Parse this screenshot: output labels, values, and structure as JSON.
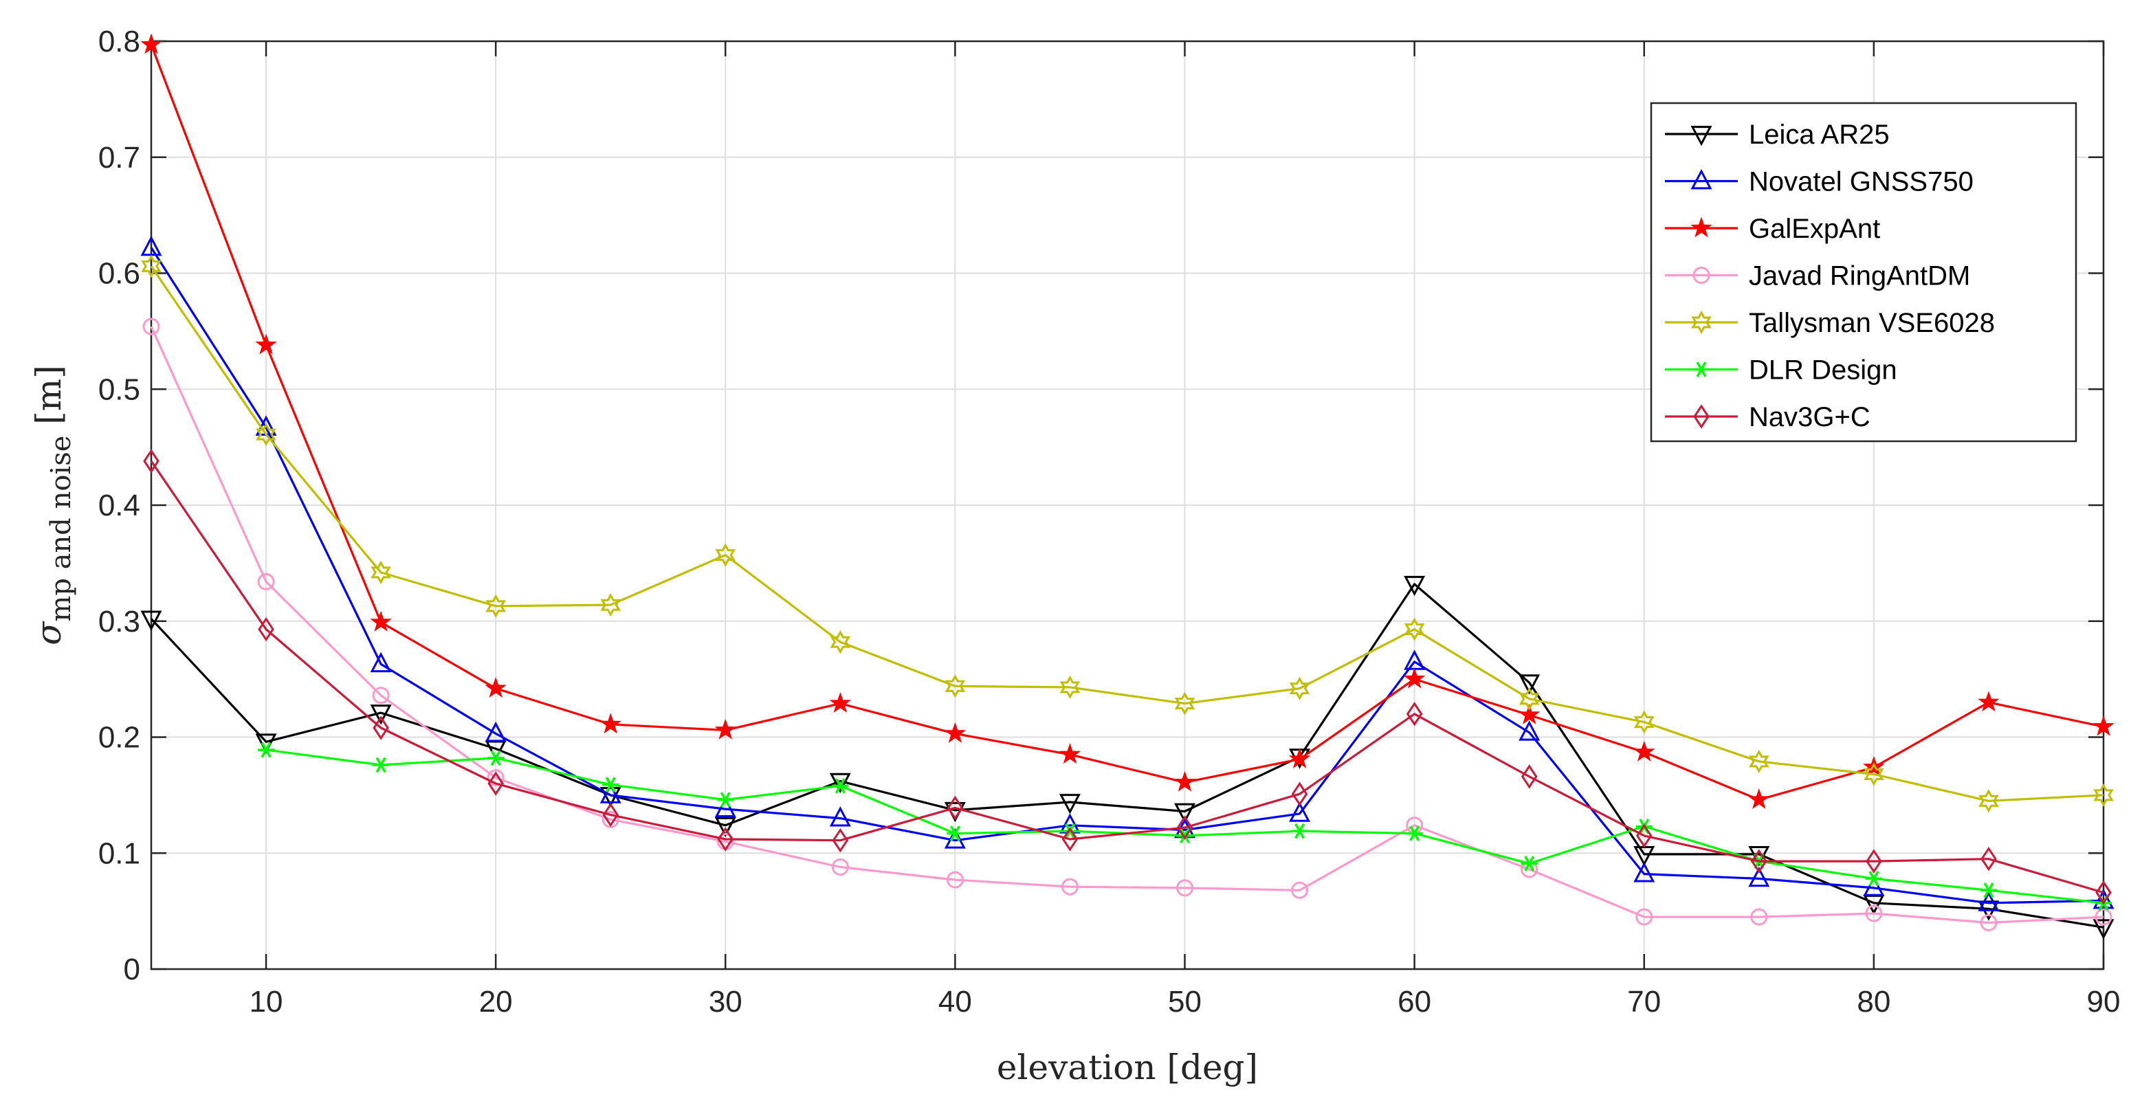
{
  "chart_data": {
    "type": "line",
    "title": "",
    "xlabel": "elevation [deg]",
    "ylabel": {
      "main": "σ",
      "subscript": "mp and noise",
      "unit": " [m]"
    },
    "xlim": [
      5,
      90
    ],
    "ylim": [
      0,
      0.8
    ],
    "xticks": [
      "10",
      "20",
      "30",
      "40",
      "50",
      "60",
      "70",
      "80",
      "90"
    ],
    "yticks": [
      "0",
      "0.1",
      "0.2",
      "0.3",
      "0.4",
      "0.5",
      "0.6",
      "0.7",
      "0.8"
    ],
    "grid": true,
    "legend_position": "top-right",
    "x": [
      5,
      10,
      15,
      20,
      25,
      30,
      35,
      40,
      45,
      50,
      55,
      60,
      65,
      70,
      75,
      80,
      85,
      90
    ],
    "series": [
      {
        "name": "Leica AR25",
        "color": "#000000",
        "marker": "triangle-down",
        "values": [
          0.302,
          0.196,
          0.221,
          0.19,
          0.15,
          0.124,
          0.162,
          0.137,
          0.144,
          0.136,
          0.183,
          0.332,
          0.247,
          0.099,
          0.099,
          0.057,
          0.052,
          0.036
        ]
      },
      {
        "name": "Novatel GNSS750",
        "color": "#0000ff",
        "marker": "triangle-up",
        "values": [
          0.622,
          0.467,
          0.263,
          0.203,
          0.15,
          0.138,
          0.13,
          0.111,
          0.124,
          0.12,
          0.134,
          0.265,
          0.204,
          0.082,
          0.078,
          0.07,
          0.057,
          0.059
        ]
      },
      {
        "name": "GalExpAnt",
        "color": "#ff0000",
        "marker": "star",
        "values": [
          0.797,
          0.538,
          0.299,
          0.242,
          0.211,
          0.206,
          0.229,
          0.203,
          0.185,
          0.161,
          0.181,
          0.25,
          0.219,
          0.187,
          0.146,
          0.174,
          0.23,
          0.209
        ]
      },
      {
        "name": "Javad RingAntDM",
        "color": "#ff99cc",
        "marker": "circle",
        "values": [
          0.554,
          0.334,
          0.236,
          0.165,
          0.129,
          0.11,
          0.088,
          0.077,
          0.071,
          0.07,
          0.068,
          0.124,
          0.086,
          0.045,
          0.045,
          0.048,
          0.04,
          0.045
        ]
      },
      {
        "name": "Tallysman VSE6028",
        "color": "#bfbf00",
        "marker": "hexagram",
        "values": [
          0.606,
          0.461,
          0.342,
          0.313,
          0.314,
          0.357,
          0.282,
          0.244,
          0.243,
          0.229,
          0.242,
          0.293,
          0.233,
          0.213,
          0.179,
          0.168,
          0.145,
          0.15
        ]
      },
      {
        "name": "DLR Design",
        "color": "#00ff00",
        "marker": "asterisk",
        "values": [
          null,
          0.189,
          0.176,
          0.182,
          0.159,
          0.146,
          0.158,
          0.117,
          0.119,
          0.115,
          0.119,
          0.117,
          0.091,
          0.123,
          0.093,
          0.078,
          0.068,
          0.057
        ]
      },
      {
        "name": "Nav3G+C",
        "color": "#cc1a3a",
        "marker": "diamond",
        "values": [
          0.438,
          0.293,
          0.208,
          0.16,
          0.133,
          0.112,
          0.111,
          0.139,
          0.112,
          0.122,
          0.151,
          0.22,
          0.166,
          0.115,
          0.093,
          0.093,
          0.095,
          0.066
        ]
      }
    ]
  }
}
